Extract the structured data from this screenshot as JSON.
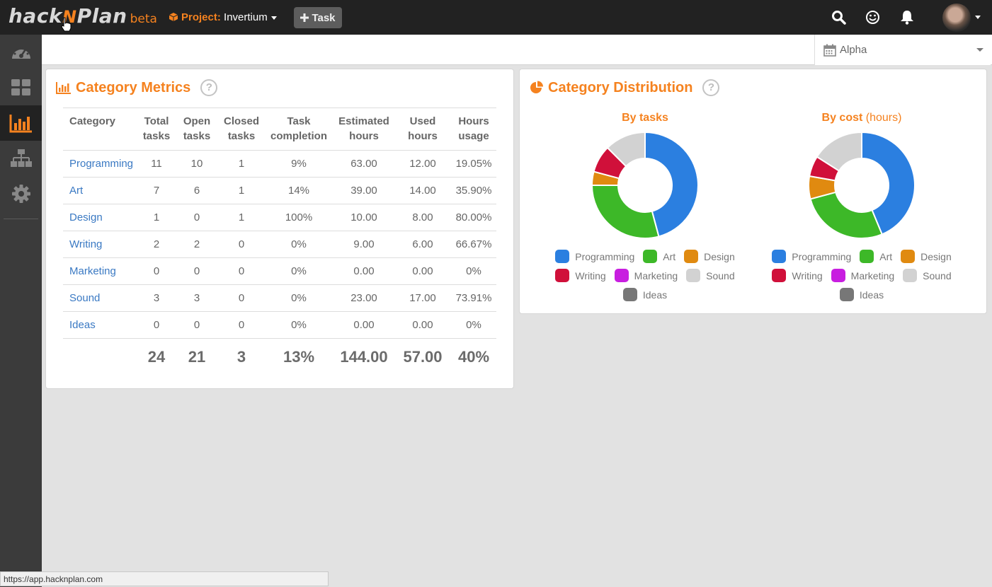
{
  "app": {
    "logo_text_left": "hack",
    "logo_mark": "N",
    "logo_text_right": "Plan",
    "logo_badge": "beta"
  },
  "topbar": {
    "project_label": "Project:",
    "project_name": "Invertium",
    "task_button_label": "Task",
    "icons": [
      "search-icon",
      "smiley-icon",
      "bell-icon"
    ]
  },
  "sidebar": {
    "items": [
      {
        "name": "dashboard",
        "icon": "speedometer-icon",
        "active": false
      },
      {
        "name": "boards",
        "icon": "grid-icon",
        "active": false
      },
      {
        "name": "metrics",
        "icon": "bar-chart-icon",
        "active": true
      },
      {
        "name": "design-model",
        "icon": "hierarchy-icon",
        "active": false
      },
      {
        "name": "settings",
        "icon": "gear-icon",
        "active": false
      }
    ]
  },
  "milestone": {
    "selected": "Alpha"
  },
  "metrics_panel": {
    "title": "Category Metrics",
    "columns": [
      [
        "Category"
      ],
      [
        "Total",
        "tasks"
      ],
      [
        "Open",
        "tasks"
      ],
      [
        "Closed",
        "tasks"
      ],
      [
        "Task",
        "completion"
      ],
      [
        "Estimated",
        "hours"
      ],
      [
        "Used",
        "hours"
      ],
      [
        "Hours",
        "usage"
      ]
    ],
    "rows": [
      [
        "Programming",
        "11",
        "10",
        "1",
        "9%",
        "63.00",
        "12.00",
        "19.05%"
      ],
      [
        "Art",
        "7",
        "6",
        "1",
        "14%",
        "39.00",
        "14.00",
        "35.90%"
      ],
      [
        "Design",
        "1",
        "0",
        "1",
        "100%",
        "10.00",
        "8.00",
        "80.00%"
      ],
      [
        "Writing",
        "2",
        "2",
        "0",
        "0%",
        "9.00",
        "6.00",
        "66.67%"
      ],
      [
        "Marketing",
        "0",
        "0",
        "0",
        "0%",
        "0.00",
        "0.00",
        "0%"
      ],
      [
        "Sound",
        "3",
        "3",
        "0",
        "0%",
        "23.00",
        "17.00",
        "73.91%"
      ],
      [
        "Ideas",
        "0",
        "0",
        "0",
        "0%",
        "0.00",
        "0.00",
        "0%"
      ]
    ],
    "totals": [
      "",
      "24",
      "21",
      "3",
      "13%",
      "144.00",
      "57.00",
      "40%"
    ]
  },
  "distribution_panel": {
    "title": "Category Distribution",
    "charts": [
      {
        "title": "By tasks",
        "subtitle": "",
        "values": [
          11,
          7,
          1,
          2,
          0,
          3,
          0
        ]
      },
      {
        "title": "By cost",
        "subtitle": "(hours)",
        "values": [
          63,
          39,
          10,
          9,
          0,
          23,
          0
        ]
      }
    ],
    "legend": [
      {
        "name": "Programming",
        "color": "#2b7fe0"
      },
      {
        "name": "Art",
        "color": "#3db828"
      },
      {
        "name": "Design",
        "color": "#e08a10"
      },
      {
        "name": "Writing",
        "color": "#d0103a"
      },
      {
        "name": "Marketing",
        "color": "#c81ee0"
      },
      {
        "name": "Sound",
        "color": "#d2d2d2"
      },
      {
        "name": "Ideas",
        "color": "#777777"
      }
    ]
  },
  "statusbar": {
    "url": "https://app.hacknplan.com"
  },
  "colors": {
    "accent": "#f5821f",
    "link": "#3a79c3",
    "topbar": "#222222",
    "sidebar": "#3b3b3b"
  }
}
